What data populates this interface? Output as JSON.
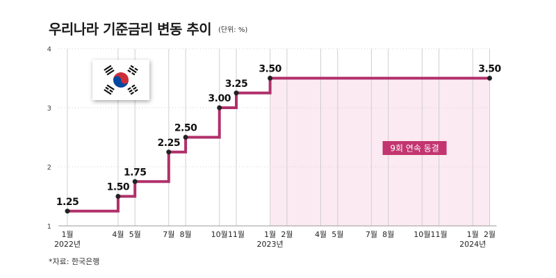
{
  "header": {
    "title": "우리나라 기준금리 변동 추이",
    "unit": "(단위: %)"
  },
  "footer": {
    "source": "*자료: 한국은행"
  },
  "flag": {
    "icon": "south-korea-flag-icon"
  },
  "colors": {
    "line": "#b0306a",
    "shade": "#fbeaf1",
    "note_bg": "#c2356f",
    "point": "#222222",
    "grid": "#cfcfcf"
  },
  "chart_data": {
    "type": "line",
    "step": true,
    "ylim": [
      1,
      4
    ],
    "yticks": [
      "1",
      "2",
      "3",
      "4"
    ],
    "x_ticks": [
      {
        "month": "2022-01",
        "label": "1월",
        "year": "2022년"
      },
      {
        "month": "2022-04",
        "label": "4월"
      },
      {
        "month": "2022-05",
        "label": "5월"
      },
      {
        "month": "2022-07",
        "label": "7월"
      },
      {
        "month": "2022-08",
        "label": "8월"
      },
      {
        "month": "2022-10",
        "label": "10월"
      },
      {
        "month": "2022-11",
        "label": "11월"
      },
      {
        "month": "2023-01",
        "label": "1월",
        "year": "2023년"
      },
      {
        "month": "2023-02",
        "label": "2월"
      },
      {
        "month": "2023-04",
        "label": "4월"
      },
      {
        "month": "2023-05",
        "label": "5월"
      },
      {
        "month": "2023-07",
        "label": "7월"
      },
      {
        "month": "2023-08",
        "label": "8월"
      },
      {
        "month": "2023-10",
        "label": "10월"
      },
      {
        "month": "2023-11",
        "label": "11월"
      },
      {
        "month": "2024-01",
        "label": "1월",
        "year": "2024년"
      },
      {
        "month": "2024-02",
        "label": "2월"
      }
    ],
    "points": [
      {
        "month": "2022-01",
        "value": 1.25,
        "label": "1.25"
      },
      {
        "month": "2022-04",
        "value": 1.5,
        "label": "1.50"
      },
      {
        "month": "2022-05",
        "value": 1.75,
        "label": "1.75"
      },
      {
        "month": "2022-07",
        "value": 2.25,
        "label": "2.25"
      },
      {
        "month": "2022-08",
        "value": 2.5,
        "label": "2.50"
      },
      {
        "month": "2022-10",
        "value": 3.0,
        "label": "3.00"
      },
      {
        "month": "2022-11",
        "value": 3.25,
        "label": "3.25"
      },
      {
        "month": "2023-01",
        "value": 3.5,
        "label": "3.50"
      },
      {
        "month": "2024-02",
        "value": 3.5,
        "label": "3.50"
      }
    ],
    "highlight": {
      "from": "2023-01",
      "to": "2024-02",
      "label": "9회 연속 동결"
    },
    "grid": "vertical-dotted"
  }
}
